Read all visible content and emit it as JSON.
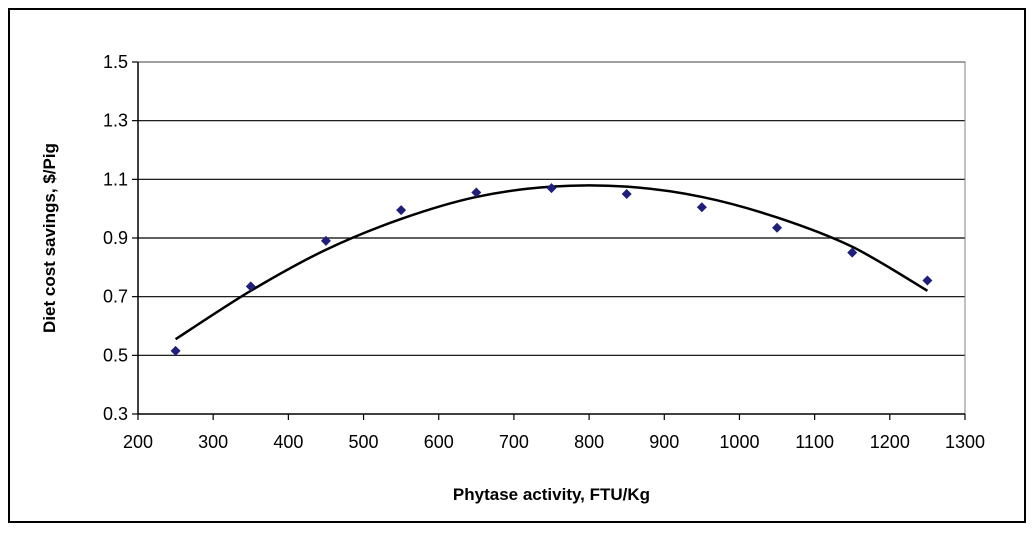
{
  "chart_data": {
    "type": "scatter",
    "title": "",
    "xlabel": "Phytase activity, FTU/Kg",
    "ylabel": "Diet cost savings, $/Pig",
    "xlim": [
      200,
      1300
    ],
    "ylim": [
      0.3,
      1.5
    ],
    "x_ticks": [
      200,
      300,
      400,
      500,
      600,
      700,
      800,
      900,
      1000,
      1100,
      1200,
      1300
    ],
    "y_ticks": [
      0.3,
      0.5,
      0.7,
      0.9,
      1.1,
      1.3,
      1.5
    ],
    "y_tick_labels": [
      "0.3",
      "0.5",
      "0.7",
      "0.9",
      "1.1",
      "1.3",
      "1.5"
    ],
    "grid": "horizontal",
    "legend": "none",
    "series": [
      {
        "marker": "diamond",
        "color": "#1f1f7a",
        "points": [
          {
            "x": 250,
            "y": 0.515
          },
          {
            "x": 350,
            "y": 0.735
          },
          {
            "x": 450,
            "y": 0.89
          },
          {
            "x": 550,
            "y": 0.995
          },
          {
            "x": 650,
            "y": 1.055
          },
          {
            "x": 750,
            "y": 1.07
          },
          {
            "x": 850,
            "y": 1.05
          },
          {
            "x": 950,
            "y": 1.005
          },
          {
            "x": 1050,
            "y": 0.935
          },
          {
            "x": 1150,
            "y": 0.85
          },
          {
            "x": 1250,
            "y": 0.755
          }
        ]
      }
    ],
    "trendline": {
      "type": "polynomial",
      "color": "#000000",
      "x": [
        250,
        350,
        450,
        550,
        650,
        750,
        850,
        950,
        1050,
        1150,
        1250
      ],
      "y": [
        0.555,
        0.72,
        0.86,
        0.965,
        1.04,
        1.075,
        1.075,
        1.04,
        0.97,
        0.87,
        0.72
      ]
    }
  }
}
